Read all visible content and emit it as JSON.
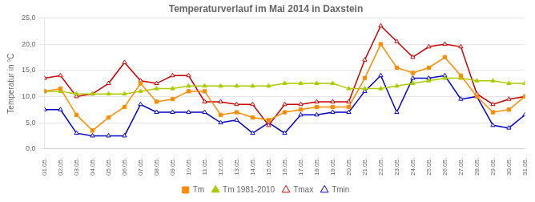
{
  "chart_data": {
    "type": "line",
    "title": "Temperaturverlauf im Mai 2014 in Daxstein",
    "y_label": "Temperatur in °C",
    "categories": [
      "01.05.",
      "02.05.",
      "03.05.",
      "04.05.",
      "05.05.",
      "06.05.",
      "07.05.",
      "08.05.",
      "09.05.",
      "10.05.",
      "11.05.",
      "12.05.",
      "13.05.",
      "14.05.",
      "15.05.",
      "16.05.",
      "17.05.",
      "18.05.",
      "19.05.",
      "20.05.",
      "21.05.",
      "22.05.",
      "23.05.",
      "24.05.",
      "25.05.",
      "26.05.",
      "27.05.",
      "28.05.",
      "29.05.",
      "30.05.",
      "31.05."
    ],
    "series": [
      {
        "name": "Tm",
        "color": "#FF8C00",
        "marker": "square",
        "values": [
          11.0,
          11.5,
          6.5,
          3.5,
          6.0,
          8.0,
          12.5,
          9.0,
          9.5,
          11.0,
          11.0,
          6.5,
          7.0,
          6.0,
          5.5,
          7.0,
          7.5,
          8.0,
          8.0,
          8.0,
          13.5,
          20.0,
          15.5,
          14.5,
          15.5,
          17.5,
          14.0,
          10.0,
          7.0,
          7.5,
          10.0
        ]
      },
      {
        "name": "Tm 1981-2010",
        "color": "#AACC00",
        "marker": "triangle",
        "values": [
          11.0,
          11.0,
          10.5,
          10.5,
          10.5,
          10.5,
          11.0,
          11.5,
          11.5,
          12.0,
          12.0,
          12.0,
          12.0,
          12.0,
          12.0,
          12.5,
          12.5,
          12.5,
          12.5,
          11.5,
          11.5,
          11.5,
          12.0,
          12.5,
          13.0,
          13.5,
          13.5,
          13.0,
          13.0,
          12.5,
          12.5
        ]
      },
      {
        "name": "Tmax",
        "color": "#CC0000",
        "marker": "triangle_open",
        "values": [
          13.5,
          14.0,
          10.0,
          10.5,
          12.5,
          16.5,
          13.0,
          12.5,
          14.0,
          14.0,
          9.0,
          9.0,
          8.5,
          8.5,
          4.5,
          8.5,
          8.5,
          9.0,
          9.0,
          9.0,
          17.0,
          23.5,
          20.5,
          17.5,
          19.5,
          20.0,
          19.5,
          10.5,
          8.5,
          9.5,
          10.0
        ]
      },
      {
        "name": "Tmin",
        "color": "#0000CC",
        "marker": "triangle_open",
        "values": [
          7.5,
          7.5,
          3.0,
          2.5,
          2.5,
          2.5,
          8.5,
          7.0,
          7.0,
          7.0,
          7.0,
          5.0,
          5.5,
          3.0,
          5.0,
          3.0,
          6.5,
          6.5,
          7.0,
          7.0,
          11.0,
          14.0,
          7.0,
          13.5,
          13.5,
          14.0,
          9.5,
          10.0,
          4.5,
          4.0,
          6.5
        ]
      }
    ],
    "ylim": [
      0,
      25
    ],
    "yticks": [
      {
        "value": 0,
        "label": "0,0"
      },
      {
        "value": 5,
        "label": "5,0"
      },
      {
        "value": 10,
        "label": "10,0"
      },
      {
        "value": 15,
        "label": "15,0"
      },
      {
        "value": 20,
        "label": "20,0"
      },
      {
        "value": 25,
        "label": "25,0"
      }
    ],
    "grid": "y",
    "legend": "bottom"
  }
}
